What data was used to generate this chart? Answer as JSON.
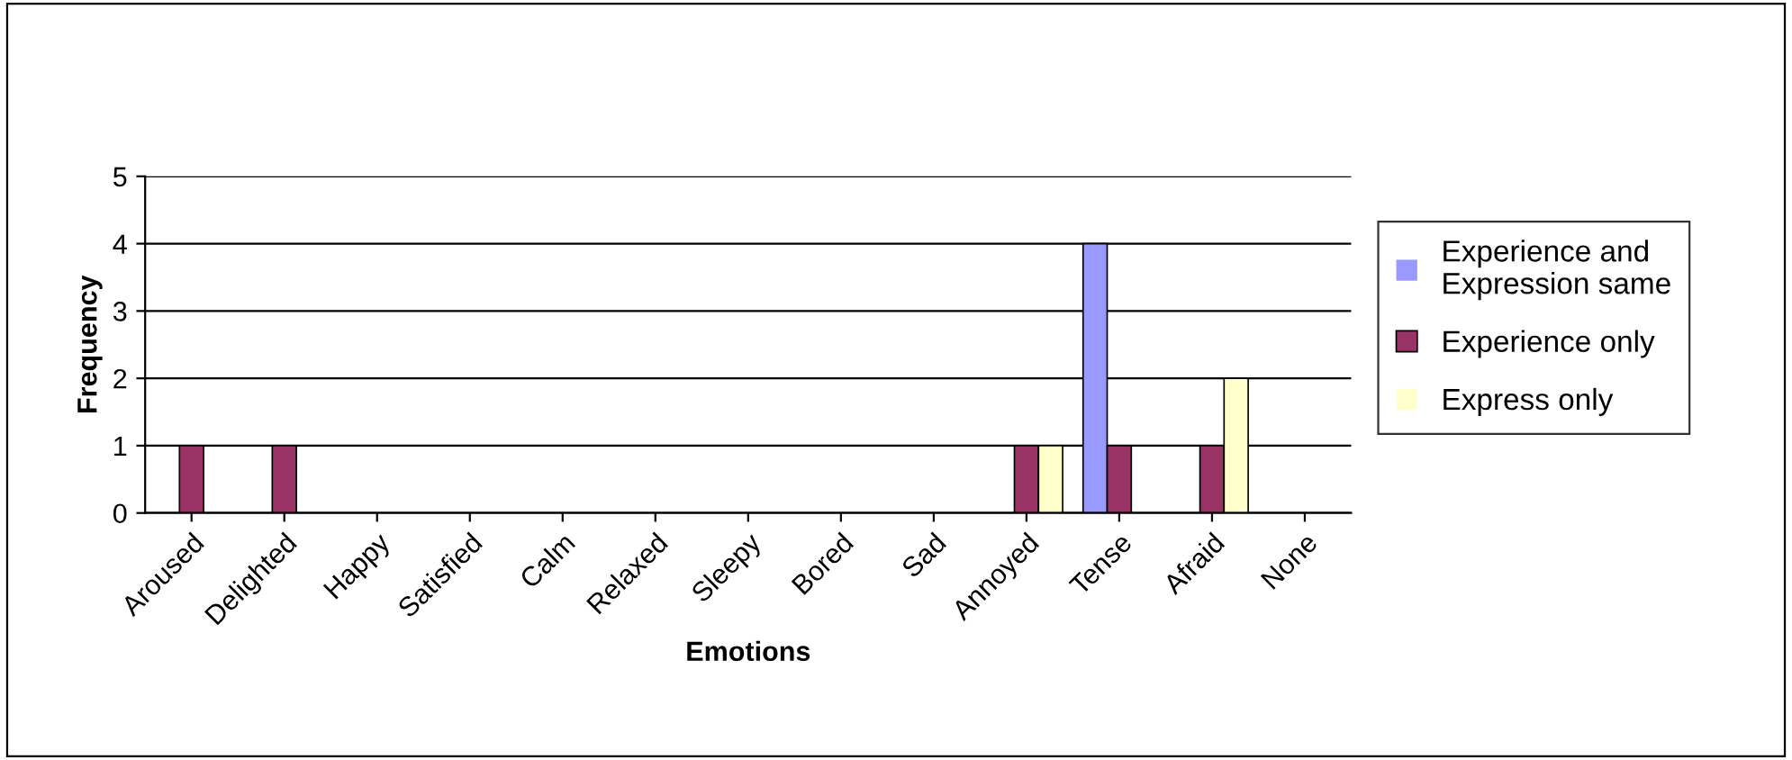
{
  "chart_data": {
    "type": "bar",
    "xlabel": "Emotions",
    "ylabel": "Frequency",
    "categories": [
      "Aroused",
      "Delighted",
      "Happy",
      "Satisfied",
      "Calm",
      "Relaxed",
      "Sleepy",
      "Bored",
      "Sad",
      "Annoyed",
      "Tense",
      "Afraid",
      "None"
    ],
    "series": [
      {
        "name": "Experience and\nExpression same",
        "color": "#9999ff",
        "values": [
          0,
          0,
          0,
          0,
          0,
          0,
          0,
          0,
          0,
          0,
          4,
          0,
          0
        ]
      },
      {
        "name": "Experience only",
        "color": "#993366",
        "values": [
          1,
          1,
          0,
          0,
          0,
          0,
          0,
          0,
          0,
          1,
          1,
          1,
          0
        ]
      },
      {
        "name": "Express only",
        "color": "#ffffcc",
        "values": [
          0,
          0,
          0,
          0,
          0,
          0,
          0,
          0,
          0,
          1,
          0,
          2,
          0
        ]
      }
    ],
    "ylim": [
      0,
      5
    ],
    "yticks": [
      0,
      1,
      2,
      3,
      4,
      5
    ],
    "grid": "y",
    "legend": "right"
  }
}
